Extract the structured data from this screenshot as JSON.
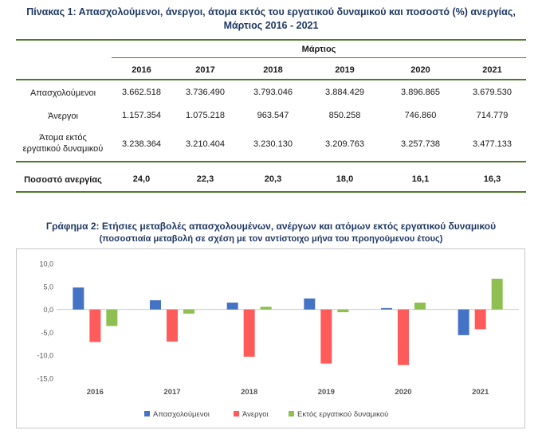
{
  "table": {
    "title_line1": "Πίνακας 1: Απασχολούμενοι, άνεργοι, άτομα εκτός του εργατικού δυναμικού και ποσοστό (%) ανεργίας,",
    "title_line2": "Μάρτιος 2016 - 2021",
    "group_header": "Μάρτιος",
    "years": [
      "2016",
      "2017",
      "2018",
      "2019",
      "2020",
      "2021"
    ],
    "rows": [
      {
        "label": "Απασχολούμενοι",
        "values": [
          "3.662.518",
          "3.736.490",
          "3.793.046",
          "3.884.429",
          "3.896.865",
          "3.679.530"
        ]
      },
      {
        "label": "Άνεργοι",
        "values": [
          "1.157.354",
          "1.075.218",
          "963.547",
          "850.258",
          "746.860",
          "714.779"
        ]
      },
      {
        "label_line1": "Άτομα εκτός",
        "label_line2": "εργατικού δυναμικού",
        "values": [
          "3.238.364",
          "3.210.404",
          "3.230.130",
          "3.209.763",
          "3.257.738",
          "3.477.133"
        ]
      }
    ],
    "rate_row": {
      "label": "Ποσοστό ανεργίας",
      "values": [
        "24,0",
        "22,3",
        "20,3",
        "18,0",
        "16,1",
        "16,3"
      ]
    }
  },
  "chart_title_line1": "Γράφημα 2: Ετήσιες μεταβολές απασχολουμένων, ανέργων και ατόμων εκτός εργατικού δυναμικού",
  "chart_title_line2": "(ποσοστιαία μεταβολή σε σχέση με τον αντίστοιχο μήνα του προηγούμενου έτους)",
  "chart_data": {
    "type": "bar",
    "categories": [
      "2016",
      "2017",
      "2018",
      "2019",
      "2020",
      "2021"
    ],
    "series": [
      {
        "name": "Απασχολούμενοι",
        "color": "#4472c4",
        "values": [
          4.8,
          2.0,
          1.5,
          2.4,
          0.3,
          -5.6
        ]
      },
      {
        "name": "Άνεργοι",
        "color": "#ff5b5b",
        "values": [
          -7.1,
          -7.0,
          -10.3,
          -11.8,
          -12.1,
          -4.3
        ]
      },
      {
        "name": "Εκτός εργατικού δυναμικού",
        "color": "#8fbf50",
        "values": [
          -3.6,
          -0.9,
          0.6,
          -0.6,
          1.5,
          6.7
        ]
      }
    ],
    "yticks": [
      "10,0",
      "5,0",
      "0,0",
      "-5,0",
      "-10,0",
      "-15,0"
    ],
    "ytick_values": [
      10,
      5,
      0,
      -5,
      -10,
      -15
    ],
    "ylim": [
      -15,
      10
    ],
    "grid": false,
    "legend": "bottom"
  }
}
